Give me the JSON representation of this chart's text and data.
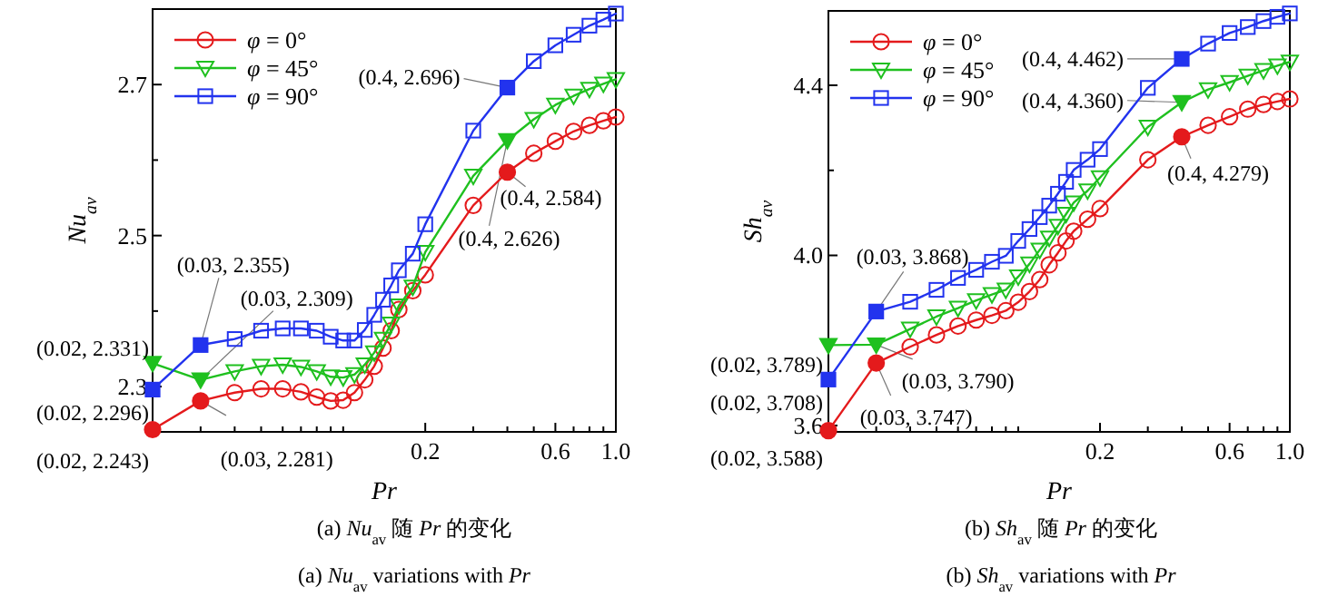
{
  "chart_data": [
    {
      "type": "line",
      "title": "(a) *Nu*$_{av}$ 随 *Pr* 的变化",
      "subtitle": "(a) *Nu*$_{av}$ variations with *Pr*",
      "xlabel": "Pr",
      "ylabel": "Nu$_{av}$",
      "log": "x",
      "xlim": [
        0.02,
        1
      ],
      "ylim": [
        2.24,
        2.8
      ],
      "xticks": [
        {
          "value": 0.03,
          "label": null
        },
        {
          "value": 0.04,
          "label": null
        },
        {
          "value": 0.05,
          "label": null
        },
        {
          "value": 0.06,
          "label": null
        },
        {
          "value": 0.07,
          "label": null
        },
        {
          "value": 0.08,
          "label": null
        },
        {
          "value": 0.09,
          "label": null
        },
        {
          "value": 0.1,
          "label": null
        },
        {
          "value": 0.2,
          "label": "0.2"
        },
        {
          "value": 0.3,
          "label": null
        },
        {
          "value": 0.4,
          "label": null
        },
        {
          "value": 0.5,
          "label": null
        },
        {
          "value": 0.6,
          "label": "0.6"
        },
        {
          "value": 0.7,
          "label": null
        },
        {
          "value": 0.8,
          "label": null
        },
        {
          "value": 0.9,
          "label": null
        },
        {
          "value": 1,
          "label": "1.0"
        }
      ],
      "yticks": [
        2.3,
        {
          "value": 2.4,
          "label": null
        },
        2.5,
        {
          "value": 2.6,
          "label": null
        },
        2.7
      ],
      "legend": "top left",
      "x": [
        0.02,
        0.03,
        0.04,
        0.05,
        0.06,
        0.07,
        0.08,
        0.09,
        0.1,
        0.11,
        0.12,
        0.13,
        0.14,
        0.15,
        0.16,
        0.18,
        0.2,
        0.3,
        0.4,
        0.5,
        0.6,
        0.7,
        0.8,
        0.9,
        1
      ],
      "series": [
        {
          "name": "*φ* = 0°",
          "color": "#e41a1c",
          "marker": "circle",
          "values": [
            2.243,
            2.281,
            2.292,
            2.297,
            2.297,
            2.293,
            2.286,
            2.281,
            2.282,
            2.292,
            2.309,
            2.327,
            2.351,
            2.374,
            2.402,
            2.427,
            2.448,
            2.54,
            2.584,
            2.609,
            2.625,
            2.638,
            2.646,
            2.652,
            2.657
          ]
        },
        {
          "name": "*φ* = 45°",
          "color": "#1fc01f",
          "marker": "triangle",
          "values": [
            2.331,
            2.309,
            2.32,
            2.327,
            2.329,
            2.326,
            2.32,
            2.313,
            2.312,
            2.316,
            2.329,
            2.345,
            2.363,
            2.383,
            2.407,
            2.432,
            2.478,
            2.579,
            2.626,
            2.654,
            2.673,
            2.685,
            2.694,
            2.701,
            2.707
          ]
        },
        {
          "name": "*φ* = 90°",
          "color": "#2233ee",
          "marker": "square",
          "values": [
            2.296,
            2.355,
            2.363,
            2.374,
            2.377,
            2.377,
            2.374,
            2.366,
            2.361,
            2.361,
            2.375,
            2.395,
            2.415,
            2.434,
            2.454,
            2.476,
            2.515,
            2.639,
            2.696,
            2.731,
            2.752,
            2.766,
            2.778,
            2.786,
            2.794
          ]
        }
      ],
      "annotations": [
        {
          "text": "(0.02, 2.331)",
          "x": 0.02,
          "y": 2.331
        },
        {
          "text": "(0.02, 2.296)",
          "x": 0.02,
          "y": 2.296
        },
        {
          "text": "(0.02, 2.243)",
          "x": 0.02,
          "y": 2.243
        },
        {
          "text": "(0.03, 2.355)",
          "x": 0.03,
          "y": 2.355
        },
        {
          "text": "(0.03, 2.309)",
          "x": 0.03,
          "y": 2.309
        },
        {
          "text": "(0.03, 2.281)",
          "x": 0.03,
          "y": 2.281
        },
        {
          "text": "(0.4, 2.696)",
          "x": 0.4,
          "y": 2.696
        },
        {
          "text": "(0.4, 2.584)",
          "x": 0.4,
          "y": 2.584
        },
        {
          "text": "(0.4, 2.626)",
          "x": 0.4,
          "y": 2.626
        }
      ]
    },
    {
      "type": "line",
      "title": "(b) *Sh*$_{av}$ 随 *Pr* 的变化",
      "subtitle": "(b) *Sh*$_{av}$ variations with *Pr*",
      "xlabel": "Pr",
      "ylabel": "Sh$_{av}$",
      "log": "x",
      "xlim": [
        0.02,
        1
      ],
      "ylim": [
        3.585,
        4.575
      ],
      "xticks": [
        {
          "value": 0.03,
          "label": null
        },
        {
          "value": 0.04,
          "label": null
        },
        {
          "value": 0.05,
          "label": null
        },
        {
          "value": 0.06,
          "label": null
        },
        {
          "value": 0.07,
          "label": null
        },
        {
          "value": 0.08,
          "label": null
        },
        {
          "value": 0.09,
          "label": null
        },
        {
          "value": 0.1,
          "label": null
        },
        {
          "value": 0.2,
          "label": "0.2"
        },
        {
          "value": 0.3,
          "label": null
        },
        {
          "value": 0.4,
          "label": null
        },
        {
          "value": 0.5,
          "label": null
        },
        {
          "value": 0.6,
          "label": "0.6"
        },
        {
          "value": 0.7,
          "label": null
        },
        {
          "value": 0.8,
          "label": null
        },
        {
          "value": 0.9,
          "label": null
        },
        {
          "value": 1,
          "label": "1.0"
        }
      ],
      "yticks": [
        3.6,
        {
          "value": 3.8,
          "label": null
        },
        {
          "value": 4,
          "label": "4.0"
        },
        {
          "value": 4.2,
          "label": null
        },
        4.4
      ],
      "legend": "top left",
      "x": [
        0.02,
        0.03,
        0.04,
        0.05,
        0.06,
        0.07,
        0.08,
        0.09,
        0.1,
        0.11,
        0.12,
        0.13,
        0.14,
        0.15,
        0.16,
        0.18,
        0.2,
        0.3,
        0.4,
        0.5,
        0.6,
        0.7,
        0.8,
        0.9,
        1
      ],
      "series": [
        {
          "name": "*φ* = 0°",
          "color": "#e41a1c",
          "marker": "circle",
          "values": [
            3.588,
            3.747,
            3.785,
            3.813,
            3.834,
            3.848,
            3.859,
            3.87,
            3.89,
            3.915,
            3.943,
            3.978,
            4.006,
            4.034,
            4.057,
            4.085,
            4.11,
            4.225,
            4.279,
            4.306,
            4.326,
            4.344,
            4.355,
            4.362,
            4.368
          ]
        },
        {
          "name": "*φ* = 45°",
          "color": "#1fc01f",
          "marker": "triangle",
          "values": [
            3.789,
            3.79,
            3.827,
            3.856,
            3.876,
            3.894,
            3.908,
            3.919,
            3.95,
            3.98,
            4.013,
            4.041,
            4.069,
            4.097,
            4.124,
            4.152,
            4.183,
            4.302,
            4.36,
            4.39,
            4.407,
            4.422,
            4.435,
            4.446,
            4.455
          ]
        },
        {
          "name": "*φ* = 90°",
          "color": "#2233ee",
          "marker": "square",
          "values": [
            3.708,
            3.868,
            3.891,
            3.919,
            3.947,
            3.966,
            3.985,
            3.999,
            4.034,
            4.062,
            4.09,
            4.117,
            4.145,
            4.173,
            4.201,
            4.225,
            4.25,
            4.394,
            4.462,
            4.498,
            4.523,
            4.537,
            4.551,
            4.561,
            4.569
          ]
        }
      ],
      "annotations": [
        {
          "text": "(0.03, 3.868)",
          "x": 0.03,
          "y": 3.868
        },
        {
          "text": "(0.02, 3.789)",
          "x": 0.02,
          "y": 3.789
        },
        {
          "text": "(0.02, 3.708)",
          "x": 0.02,
          "y": 3.708
        },
        {
          "text": "(0.02, 3.588)",
          "x": 0.02,
          "y": 3.588
        },
        {
          "text": "(0.03, 3.790)",
          "x": 0.03,
          "y": 3.79
        },
        {
          "text": "(0.03, 3.747)",
          "x": 0.03,
          "y": 3.747
        },
        {
          "text": "(0.4, 4.462)",
          "x": 0.4,
          "y": 4.462
        },
        {
          "text": "(0.4, 4.360)",
          "x": 0.4,
          "y": 4.36
        },
        {
          "text": "(0.4, 4.279)",
          "x": 0.4,
          "y": 4.279
        }
      ]
    }
  ]
}
